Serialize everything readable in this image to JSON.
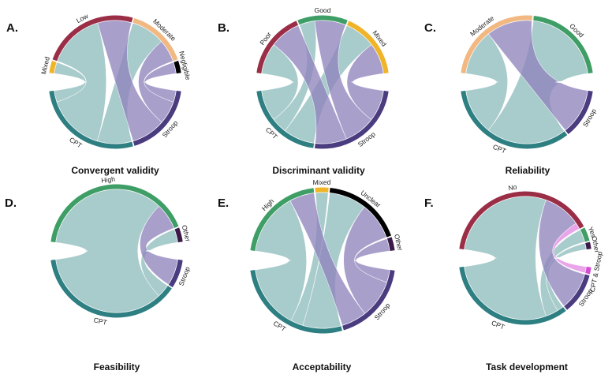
{
  "figure": {
    "colors": {
      "CPT": "#2e7f82",
      "Stroop": "#4b3b7f",
      "Low": "#9b2e47",
      "Poor": "#9b2e47",
      "No": "#9b2e47",
      "Moderate": "#f2b882",
      "Negligible": "#000000",
      "Unclear": "#000000",
      "Mixed": "#f0b428",
      "Good": "#3f9e66",
      "High": "#3f9e66",
      "Yes": "#3f9e66",
      "Other": "#3b1948",
      "CPT & Stroop": "#d34fd1"
    },
    "ribbon_colors": {
      "CPT": "#8fbcbd",
      "Stroop": "#8f84bd",
      "CPT & Stroop": "#e48be4"
    }
  },
  "chart_data": [
    {
      "type": "chord",
      "letter": "A.",
      "title": "Convergent validity",
      "tasks": [
        {
          "name": "CPT",
          "value": 9
        },
        {
          "name": "Stroop",
          "value": 6
        }
      ],
      "outcomes": [
        {
          "name": "Mixed",
          "value": 1
        },
        {
          "name": "Low",
          "value": 8
        },
        {
          "name": "Moderate",
          "value": 5
        },
        {
          "name": "Negligible",
          "value": 1
        }
      ],
      "links": [
        {
          "source": "CPT",
          "target": "Mixed",
          "value": 1
        },
        {
          "source": "CPT",
          "target": "Low",
          "value": 5
        },
        {
          "source": "CPT",
          "target": "Moderate",
          "value": 3
        },
        {
          "source": "Stroop",
          "target": "Low",
          "value": 3
        },
        {
          "source": "Stroop",
          "target": "Moderate",
          "value": 2
        },
        {
          "source": "Stroop",
          "target": "Negligible",
          "value": 1
        }
      ]
    },
    {
      "type": "chord",
      "letter": "B.",
      "title": "Discriminant validity",
      "tasks": [
        {
          "name": "CPT",
          "value": 5
        },
        {
          "name": "Stroop",
          "value": 6
        }
      ],
      "outcomes": [
        {
          "name": "Poor",
          "value": 4
        },
        {
          "name": "Good",
          "value": 3
        },
        {
          "name": "Mixed",
          "value": 4
        }
      ],
      "links": [
        {
          "source": "CPT",
          "target": "Poor",
          "value": 2
        },
        {
          "source": "CPT",
          "target": "Good",
          "value": 1
        },
        {
          "source": "CPT",
          "target": "Mixed",
          "value": 2
        },
        {
          "source": "Stroop",
          "target": "Poor",
          "value": 2
        },
        {
          "source": "Stroop",
          "target": "Good",
          "value": 2
        },
        {
          "source": "Stroop",
          "target": "Mixed",
          "value": 2
        }
      ]
    },
    {
      "type": "chord",
      "letter": "C.",
      "title": "Reliability",
      "tasks": [
        {
          "name": "CPT",
          "value": 11
        },
        {
          "name": "Stroop",
          "value": 4
        }
      ],
      "outcomes": [
        {
          "name": "Moderate",
          "value": 8
        },
        {
          "name": "Good",
          "value": 7
        }
      ],
      "links": [
        {
          "source": "CPT",
          "target": "Moderate",
          "value": 4
        },
        {
          "source": "CPT",
          "target": "Good",
          "value": 7
        },
        {
          "source": "Stroop",
          "target": "Moderate",
          "value": 4
        }
      ]
    },
    {
      "type": "chord",
      "letter": "D.",
      "title": "Feasibility",
      "tasks": [
        {
          "name": "CPT",
          "value": 22
        },
        {
          "name": "Stroop",
          "value": 4
        }
      ],
      "outcomes": [
        {
          "name": "High",
          "value": 24
        },
        {
          "name": "Other",
          "value": 2
        }
      ],
      "links": [
        {
          "source": "CPT",
          "target": "High",
          "value": 20
        },
        {
          "source": "CPT",
          "target": "Other",
          "value": 2
        },
        {
          "source": "Stroop",
          "target": "High",
          "value": 4
        }
      ]
    },
    {
      "type": "chord",
      "letter": "E.",
      "title": "Acceptability",
      "tasks": [
        {
          "name": "CPT",
          "value": 9
        },
        {
          "name": "Stroop",
          "value": 6
        }
      ],
      "outcomes": [
        {
          "name": "High",
          "value": 7
        },
        {
          "name": "Mixed",
          "value": 1
        },
        {
          "name": "Unclear",
          "value": 6
        },
        {
          "name": "Other",
          "value": 1
        }
      ],
      "links": [
        {
          "source": "CPT",
          "target": "High",
          "value": 5
        },
        {
          "source": "CPT",
          "target": "Mixed",
          "value": 1
        },
        {
          "source": "CPT",
          "target": "Unclear",
          "value": 3
        },
        {
          "source": "Stroop",
          "target": "High",
          "value": 2
        },
        {
          "source": "Stroop",
          "target": "Unclear",
          "value": 3
        },
        {
          "source": "Stroop",
          "target": "Other",
          "value": 1
        }
      ]
    },
    {
      "type": "chord",
      "letter": "F.",
      "title": "Task development",
      "tasks": [
        {
          "name": "CPT",
          "value": 20
        },
        {
          "name": "Stroop",
          "value": 6
        },
        {
          "name": "CPT & Stroop",
          "value": 1
        }
      ],
      "outcomes": [
        {
          "name": "No",
          "value": 24
        },
        {
          "name": "Yes",
          "value": 2
        },
        {
          "name": "Other",
          "value": 1
        }
      ],
      "links": [
        {
          "source": "CPT",
          "target": "No",
          "value": 17
        },
        {
          "source": "CPT",
          "target": "Yes",
          "value": 2
        },
        {
          "source": "CPT",
          "target": "Other",
          "value": 1
        },
        {
          "source": "Stroop",
          "target": "No",
          "value": 6
        },
        {
          "source": "CPT & Stroop",
          "target": "No",
          "value": 1
        }
      ]
    }
  ]
}
